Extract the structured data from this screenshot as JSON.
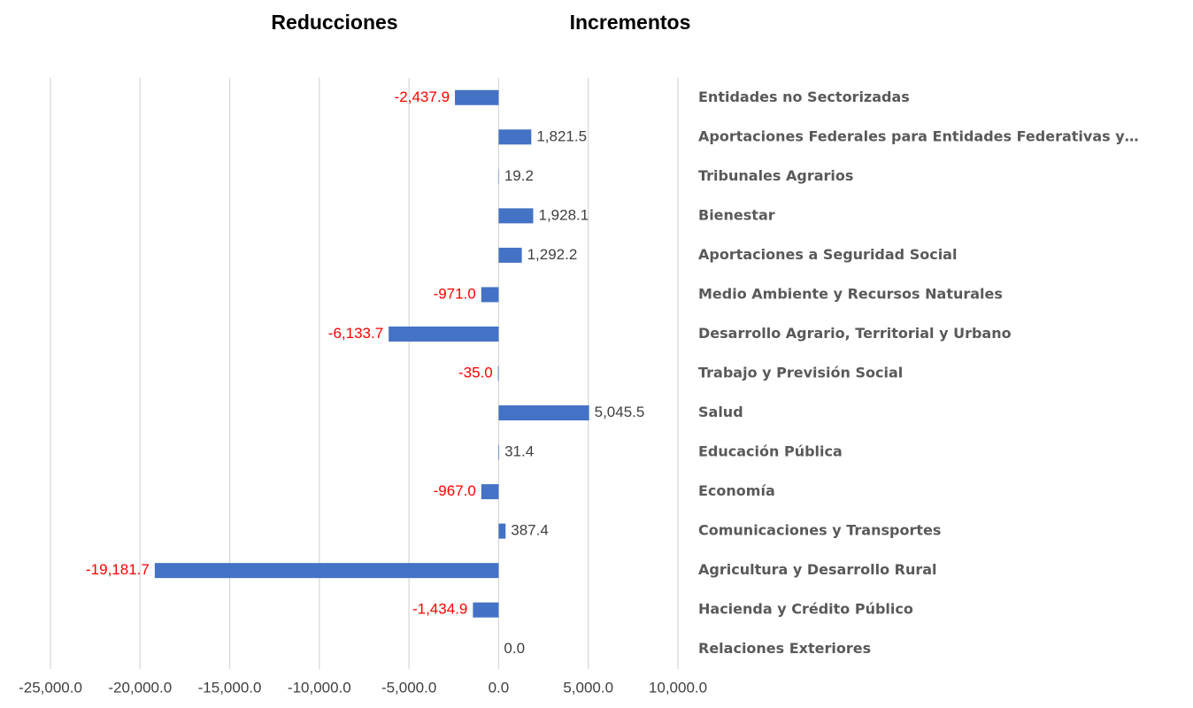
{
  "chart_data": {
    "type": "hbar",
    "left_title": "Reducciones",
    "right_title": "Incrementos",
    "categories": [
      "Entidades no Sectorizadas",
      "Aportaciones Federales para Entidades Federativas y…",
      "Tribunales Agrarios",
      "Bienestar",
      "Aportaciones a Seguridad Social",
      "Medio Ambiente y Recursos Naturales",
      "Desarrollo Agrario, Territorial y Urbano",
      "Trabajo y Previsión Social",
      "Salud",
      "Educación Pública",
      "Economía",
      "Comunicaciones y Transportes",
      "Agricultura y Desarrollo Rural",
      "Hacienda y Crédito Público",
      "Relaciones Exteriores"
    ],
    "values": [
      -2437.9,
      1821.5,
      19.2,
      1928.1,
      1292.2,
      -971.0,
      -6133.7,
      -35.0,
      5045.5,
      31.4,
      -967.0,
      387.4,
      -19181.7,
      -1434.9,
      0.0
    ],
    "value_labels": [
      "-2,437.9",
      "1,821.5",
      "19.2",
      "1,928.1",
      "1,292.2",
      "-971.0",
      "-6,133.7",
      "-35.0",
      "5,045.5",
      "31.4",
      "-967.0",
      "387.4",
      "-19,181.7",
      "-1,434.9",
      "0.0"
    ],
    "color": "#4472c4",
    "negative_label_color": "#ff0000",
    "positive_label_color": "#404040",
    "xlim": [
      -25000,
      10000
    ],
    "xticks": [
      {
        "value": -25000,
        "label": "-25,000.0"
      },
      {
        "value": -20000,
        "label": "-20,000.0"
      },
      {
        "value": -15000,
        "label": "-15,000.0"
      },
      {
        "value": -10000,
        "label": "-10,000.0"
      },
      {
        "value": -5000,
        "label": "-5,000.0"
      },
      {
        "value": 0,
        "label": "0.0"
      },
      {
        "value": 5000,
        "label": "5,000.0"
      },
      {
        "value": 10000,
        "label": "10,000.0"
      }
    ],
    "grid": true
  }
}
